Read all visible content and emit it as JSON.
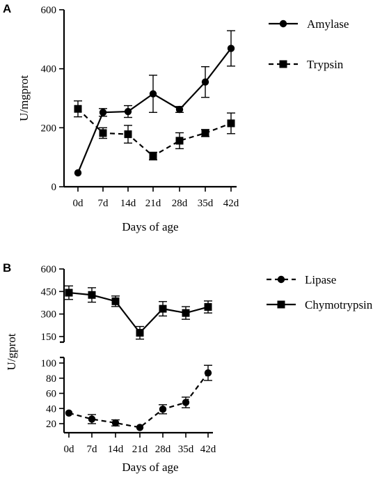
{
  "chart_data": [
    {
      "panel": "A",
      "type": "line",
      "xlabel": "Days of  age",
      "ylabel": "U/mgprot",
      "categories": [
        "0d",
        "7d",
        "14d",
        "21d",
        "28d",
        "35d",
        "42d"
      ],
      "ylim": [
        0,
        600
      ],
      "yticks": [
        "0",
        "200",
        "400",
        "600"
      ],
      "legend_position": "top-right",
      "series": [
        {
          "name": "Amylase",
          "marker": "circle",
          "line": "solid",
          "values": [
            47,
            252,
            255,
            315,
            262,
            355,
            469
          ],
          "errors": [
            0,
            13,
            20,
            63,
            10,
            52,
            60
          ]
        },
        {
          "name": "Trypsin",
          "marker": "square",
          "line": "dashed",
          "values": [
            264,
            182,
            178,
            104,
            156,
            182,
            215
          ],
          "errors": [
            27,
            18,
            30,
            13,
            27,
            12,
            35
          ]
        }
      ]
    },
    {
      "panel": "B",
      "type": "line",
      "xlabel": "Days of  age",
      "ylabel": "U/gprot",
      "categories": [
        "0d",
        "7d",
        "14d",
        "21d",
        "28d",
        "35d",
        "42d"
      ],
      "broken_axis": true,
      "upper_ylim": [
        150,
        600
      ],
      "upper_yticks": [
        "150",
        "300",
        "450",
        "600"
      ],
      "lower_ylim": [
        20,
        100
      ],
      "lower_yticks": [
        "20",
        "40",
        "60",
        "80",
        "100"
      ],
      "legend_position": "top-right",
      "series": [
        {
          "name": "Lipase",
          "marker": "circle",
          "line": "dashed",
          "segment": "lower",
          "values": [
            34,
            26,
            21,
            15,
            39,
            48,
            87
          ],
          "errors": [
            0,
            6,
            4,
            0,
            6,
            7,
            10
          ]
        },
        {
          "name": "Chymotrypsin",
          "marker": "square",
          "line": "solid",
          "segment": "upper",
          "values": [
            442,
            427,
            385,
            175,
            335,
            307,
            347
          ],
          "errors": [
            45,
            48,
            35,
            42,
            48,
            42,
            40
          ]
        }
      ]
    }
  ]
}
